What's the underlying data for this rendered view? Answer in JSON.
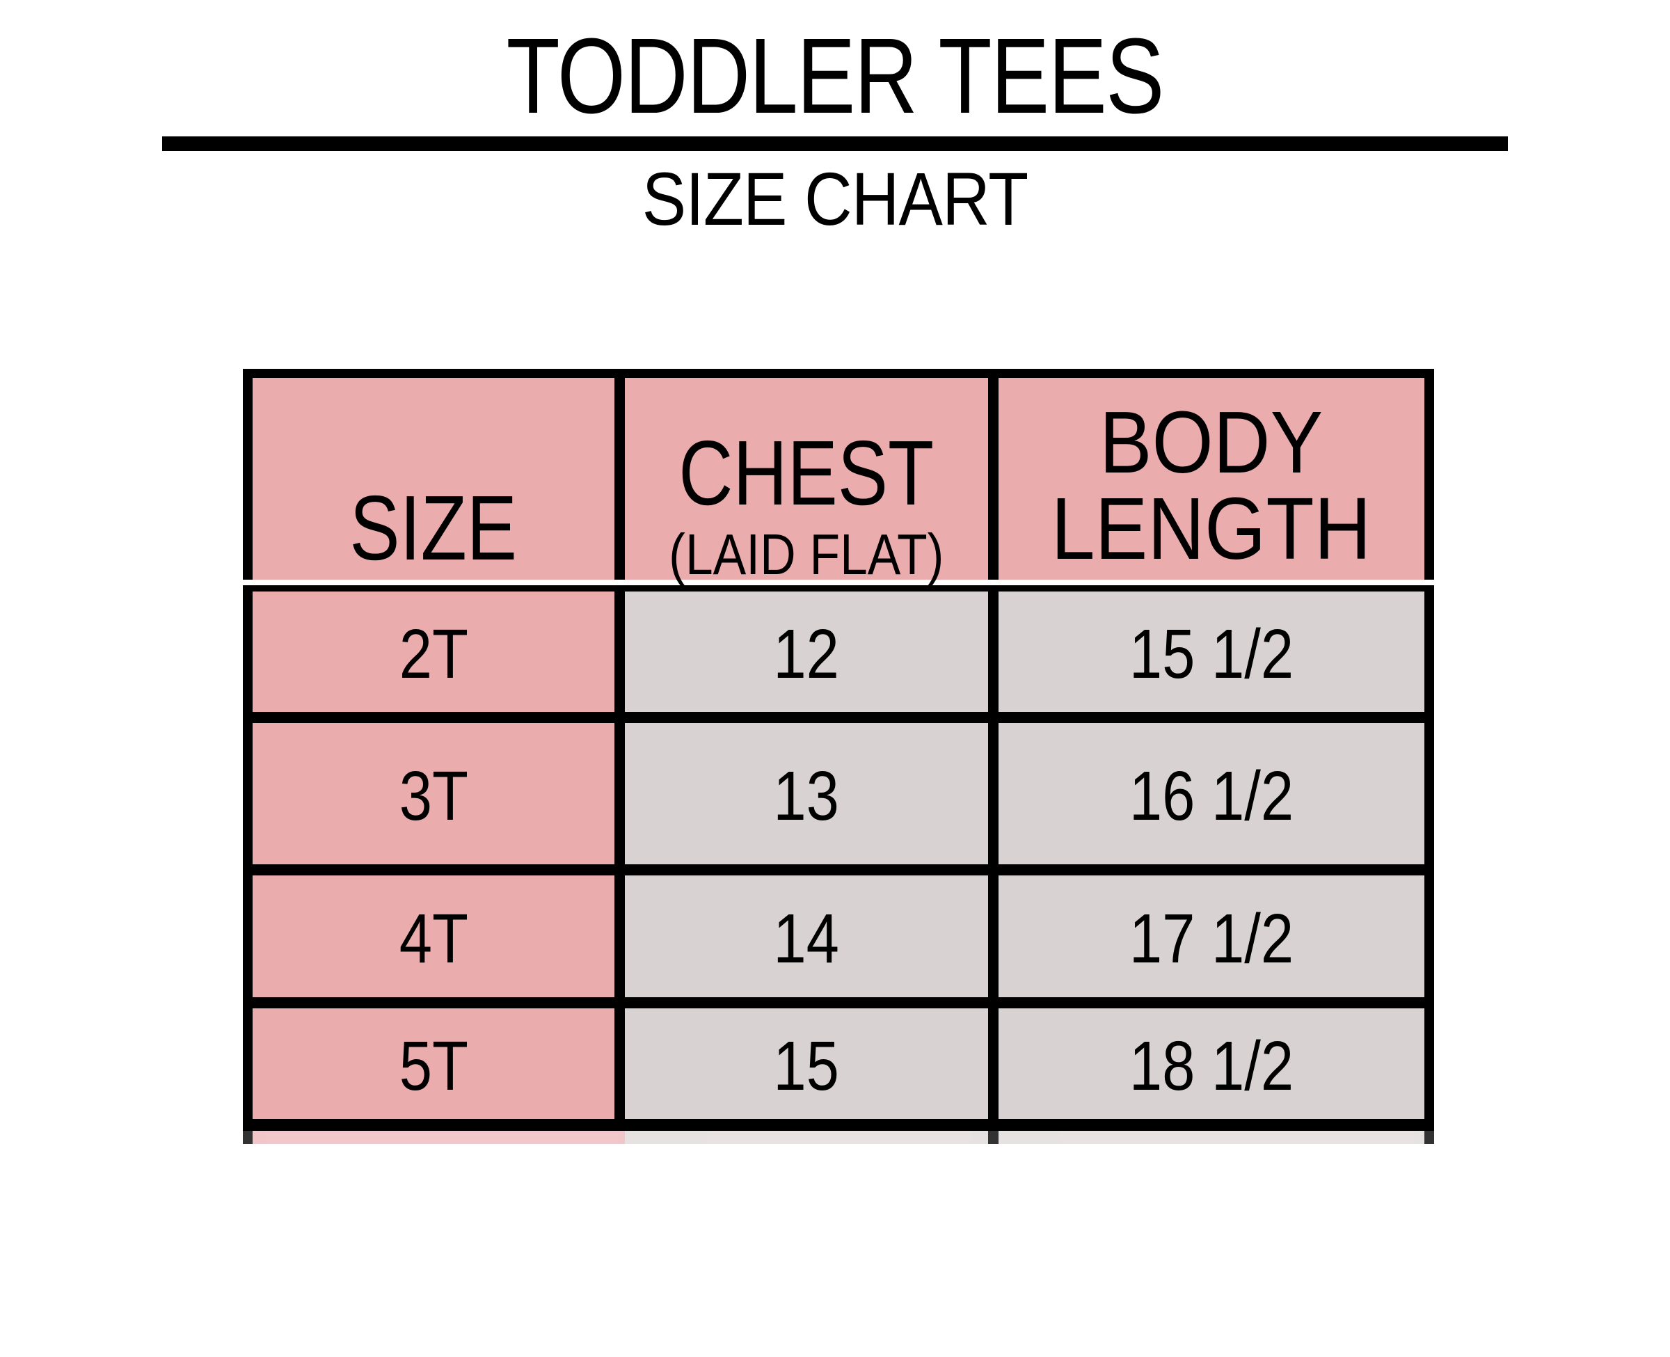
{
  "page": {
    "title": "TODDLER TEES",
    "subtitle": "SIZE CHART"
  },
  "table": {
    "columns": [
      {
        "label": "SIZE"
      },
      {
        "label": "CHEST",
        "sublabel": "(LAID FLAT)"
      },
      {
        "label": "BODY LENGTH",
        "lines": [
          "BODY",
          "LENGTH"
        ]
      }
    ],
    "rows": [
      {
        "size": "2T",
        "chest": "12",
        "body_length": "15 1/2"
      },
      {
        "size": "3T",
        "chest": "13",
        "body_length": "16 1/2"
      },
      {
        "size": "4T",
        "chest": "14",
        "body_length": "17 1/2"
      },
      {
        "size": "5T",
        "chest": "15",
        "body_length": "18 1/2"
      }
    ]
  },
  "colors": {
    "header_pink": "#ebacae",
    "cell_gray": "#d9d2d3",
    "grid_black": "#000000",
    "background": "#ffffff"
  }
}
